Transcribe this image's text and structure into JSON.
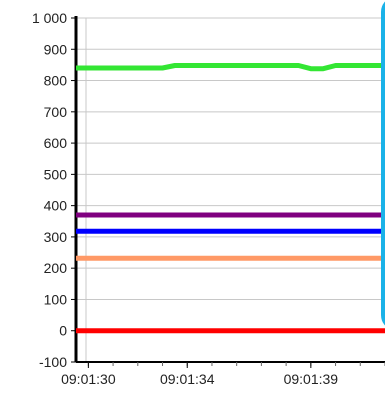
{
  "chart_data": {
    "type": "line",
    "title": "",
    "xlabel": "",
    "ylabel": "",
    "y_range": [
      -100,
      1000
    ],
    "y_ticks": [
      -100,
      0,
      100,
      200,
      300,
      400,
      500,
      600,
      700,
      800,
      900,
      1000
    ],
    "y_tick_labels": [
      "-100",
      "0",
      "100",
      "200",
      "300",
      "400",
      "500",
      "600",
      "700",
      "800",
      "900",
      "1 000"
    ],
    "x_range": [
      "09:01:29.5",
      "09:01:42"
    ],
    "x_tick_labels": [
      {
        "time": "09:01:30",
        "label": "09:01:30"
      },
      {
        "time": "09:01:34",
        "label": "09:01:34"
      },
      {
        "time": "09:01:39",
        "label": "09:01:39"
      }
    ],
    "grid": true,
    "series": [
      {
        "color": "#33e633",
        "points": [
          {
            "t": "09:01:29.5",
            "y": 840
          },
          {
            "t": "09:01:33",
            "y": 840
          },
          {
            "t": "09:01:33.5",
            "y": 848
          },
          {
            "t": "09:01:38.5",
            "y": 848
          },
          {
            "t": "09:01:39",
            "y": 838
          },
          {
            "t": "09:01:39.5",
            "y": 838
          },
          {
            "t": "09:01:40",
            "y": 848
          },
          {
            "t": "09:01:42",
            "y": 848
          }
        ]
      },
      {
        "color": "#800080",
        "points": [
          {
            "t": "09:01:29.5",
            "y": 370
          },
          {
            "t": "09:01:42",
            "y": 370
          }
        ]
      },
      {
        "color": "#0000ff",
        "points": [
          {
            "t": "09:01:29.5",
            "y": 318
          },
          {
            "t": "09:01:42",
            "y": 318
          }
        ]
      },
      {
        "color": "#ff9966",
        "points": [
          {
            "t": "09:01:29.5",
            "y": 232
          },
          {
            "t": "09:01:42",
            "y": 232
          }
        ]
      },
      {
        "color": "#ff0000",
        "points": [
          {
            "t": "09:01:29.5",
            "y": 0
          },
          {
            "t": "09:01:42",
            "y": 0
          }
        ]
      }
    ]
  },
  "overlay": {
    "border_color": "#1ab2e8"
  }
}
